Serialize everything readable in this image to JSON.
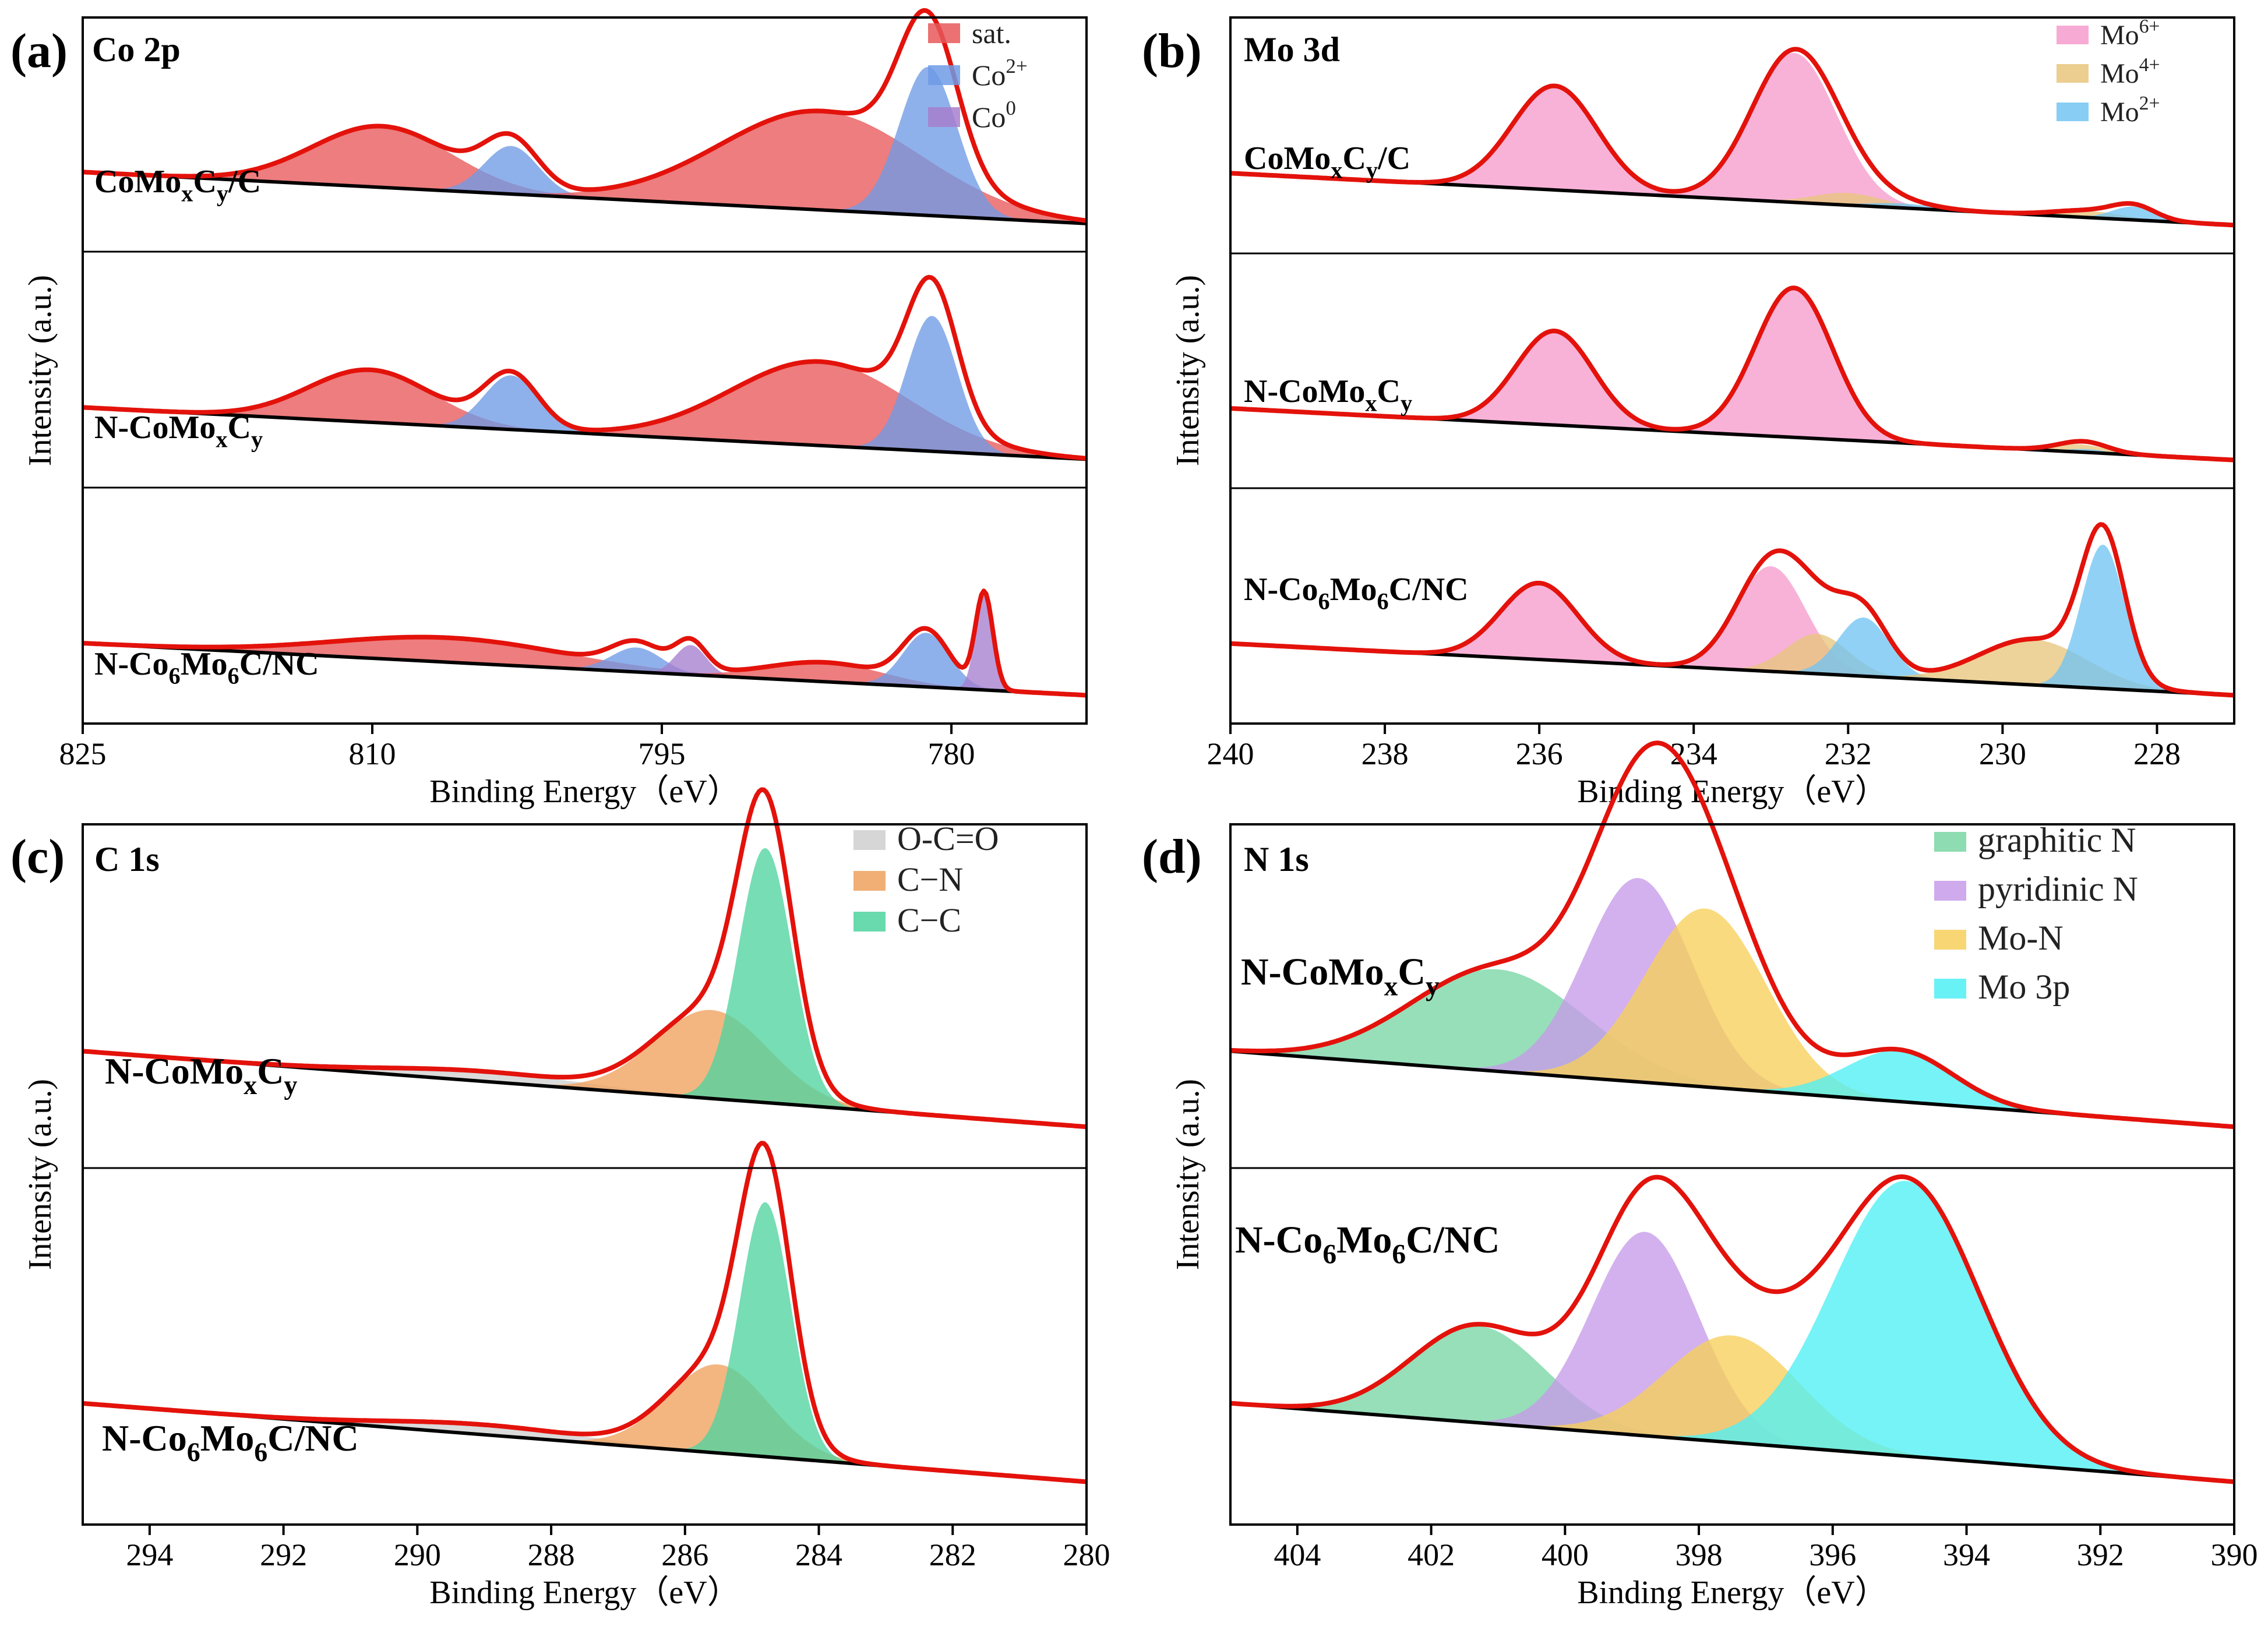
{
  "chart_data": [
    {
      "panel": "(a)",
      "type": "area",
      "title": "Co 2p",
      "xlabel": "Binding Energy（eV）",
      "ylabel": "Intensity (a.u.)",
      "xlim": [
        825,
        773
      ],
      "xticks": [
        825,
        810,
        795,
        780
      ],
      "legend": [
        {
          "label": "sat.",
          "color": "#e8585a"
        },
        {
          "label": "Co",
          "sup": "2+",
          "color": "#6f9be6"
        },
        {
          "label": "Co",
          "sup": "0",
          "color": "#a77fce"
        }
      ],
      "samples": [
        {
          "name": [
            "CoMo",
            {
              "sub": "x"
            },
            "C",
            {
              "sub": "y"
            },
            "/C"
          ],
          "baseline": [
            0.62,
            0.05
          ],
          "peaks": [
            {
              "center": 809.5,
              "height": 0.7,
              "width": 3.6,
              "component": "sat."
            },
            {
              "center": 802.8,
              "height": 0.55,
              "width": 1.4,
              "component": "Co2+"
            },
            {
              "center": 786.8,
              "height": 1.13,
              "width": 5.2,
              "component": "sat."
            },
            {
              "center": 781.2,
              "height": 1.7,
              "width": 1.5,
              "component": "Co2+"
            }
          ]
        },
        {
          "name": [
            "N-CoMo",
            {
              "sub": "x"
            },
            "C",
            {
              "sub": "y"
            }
          ],
          "baseline": [
            0.62,
            0.05
          ],
          "peaks": [
            {
              "center": 810.1,
              "height": 0.6,
              "width": 3.2,
              "component": "sat."
            },
            {
              "center": 802.8,
              "height": 0.62,
              "width": 1.4,
              "component": "Co2+"
            },
            {
              "center": 786.8,
              "height": 0.96,
              "width": 4.6,
              "component": "sat."
            },
            {
              "center": 781.0,
              "height": 1.55,
              "width": 1.3,
              "component": "Co2+"
            }
          ]
        },
        {
          "name": [
            "N-Co",
            {
              "sub": "6"
            },
            "Mo",
            {
              "sub": "6"
            },
            "C/NC"
          ],
          "baseline": [
            0.62,
            0.05
          ],
          "peaks": [
            {
              "center": 806.0,
              "height": 0.28,
              "width": 6.0,
              "component": "sat."
            },
            {
              "center": 796.3,
              "height": 0.28,
              "width": 1.3,
              "component": "Co2+"
            },
            {
              "center": 793.5,
              "height": 0.34,
              "width": 0.8,
              "component": "Co0"
            },
            {
              "center": 786.5,
              "height": 0.22,
              "width": 3.0,
              "component": "sat."
            },
            {
              "center": 781.3,
              "height": 0.62,
              "width": 1.2,
              "component": "Co2+"
            },
            {
              "center": 778.3,
              "height": 1.1,
              "width": 0.45,
              "component": "Co0"
            }
          ]
        }
      ]
    },
    {
      "panel": "(b)",
      "type": "area",
      "title": "Mo 3d",
      "xlabel": "Binding Energy（eV）",
      "ylabel": "Intensity (a.u.)",
      "xlim": [
        240,
        227
      ],
      "xticks": [
        240,
        238,
        236,
        234,
        232,
        230,
        228
      ],
      "legend": [
        {
          "label": "Mo",
          "sup": "6+",
          "color": "#f69ccd"
        },
        {
          "label": "Mo",
          "sup": "4+",
          "color": "#e8c57c"
        },
        {
          "label": "Mo",
          "sup": "2+",
          "color": "#72c4f2"
        }
      ],
      "samples": [
        {
          "name": [
            "CoMo",
            {
              "sub": "x"
            },
            "C",
            {
              "sub": "y"
            },
            "/C"
          ],
          "baseline": [
            0.62,
            0.05
          ],
          "peaks": [
            {
              "center": 235.8,
              "height": 1.88,
              "width": 0.55,
              "component": "Mo6+"
            },
            {
              "center": 232.7,
              "height": 2.7,
              "width": 0.55,
              "component": "Mo6+"
            },
            {
              "center": 232.0,
              "height": 0.22,
              "width": 0.45,
              "component": "Mo4+"
            },
            {
              "center": 231.3,
              "height": 0.08,
              "width": 0.45,
              "component": "Mo2+"
            },
            {
              "center": 228.9,
              "height": 0.12,
              "width": 0.45,
              "component": "Mo4+"
            },
            {
              "center": 228.3,
              "height": 0.24,
              "width": 0.28,
              "component": "Mo2+"
            }
          ]
        },
        {
          "name": [
            "N-CoMo",
            {
              "sub": "x"
            },
            "C",
            {
              "sub": "y"
            }
          ],
          "baseline": [
            0.62,
            0.05
          ],
          "peaks": [
            {
              "center": 235.8,
              "height": 1.7,
              "width": 0.5,
              "component": "Mo6+"
            },
            {
              "center": 232.7,
              "height": 2.7,
              "width": 0.5,
              "component": "Mo6+"
            },
            {
              "center": 229.0,
              "height": 0.14,
              "width": 0.35,
              "component": "Mo4+"
            },
            {
              "center": 228.9,
              "height": 0.06,
              "width": 0.25,
              "component": "Mo2+"
            }
          ]
        },
        {
          "name": [
            "N-Co",
            {
              "sub": "6"
            },
            "Mo",
            {
              "sub": "6"
            },
            "C/NC"
          ],
          "baseline": [
            0.62,
            0.05
          ],
          "peaks": [
            {
              "center": 236.0,
              "height": 1.38,
              "width": 0.5,
              "component": "Mo6+"
            },
            {
              "center": 233.0,
              "height": 1.9,
              "width": 0.45,
              "component": "Mo6+"
            },
            {
              "center": 232.4,
              "height": 0.72,
              "width": 0.4,
              "component": "Mo4+"
            },
            {
              "center": 231.8,
              "height": 1.06,
              "width": 0.33,
              "component": "Mo2+"
            },
            {
              "center": 229.6,
              "height": 0.82,
              "width": 0.7,
              "component": "Mo4+"
            },
            {
              "center": 228.7,
              "height": 2.6,
              "width": 0.28,
              "component": "Mo2+"
            }
          ]
        }
      ]
    },
    {
      "panel": "(c)",
      "type": "area",
      "title": "C 1s",
      "xlabel": "Binding Energy（eV）",
      "ylabel": "Intensity (a.u.)",
      "xlim": [
        295,
        280
      ],
      "xticks": [
        294,
        292,
        290,
        288,
        286,
        284,
        282,
        280
      ],
      "legend": [
        {
          "label": "O-C=O",
          "color": "#cfcfcf"
        },
        {
          "label": "C−N",
          "color": "#f0a15d"
        },
        {
          "label": "C−C",
          "color": "#4fd3a0"
        }
      ],
      "samples": [
        {
          "name": [
            "N-CoMo",
            {
              "sub": "x"
            },
            "C",
            {
              "sub": "y"
            }
          ],
          "baseline": [
            0.62,
            0.05
          ],
          "peaks": [
            {
              "center": 289.0,
              "height": 0.18,
              "width": 1.5,
              "component": "O-C=O"
            },
            {
              "center": 285.6,
              "height": 1.6,
              "width": 0.85,
              "component": "C−N"
            },
            {
              "center": 284.8,
              "height": 4.6,
              "width": 0.4,
              "component": "C−C"
            }
          ]
        },
        {
          "name": [
            "N-Co",
            {
              "sub": "6"
            },
            "Mo",
            {
              "sub": "6"
            },
            "C/NC"
          ],
          "baseline": [
            0.62,
            0.05
          ],
          "peaks": [
            {
              "center": 289.0,
              "height": 0.18,
              "width": 1.5,
              "component": "O-C=O"
            },
            {
              "center": 285.5,
              "height": 1.6,
              "width": 0.75,
              "component": "C−N"
            },
            {
              "center": 284.8,
              "height": 4.6,
              "width": 0.38,
              "component": "C−C"
            }
          ]
        }
      ]
    },
    {
      "panel": "(d)",
      "type": "area",
      "title": "N 1s",
      "xlabel": "Binding Energy（eV）",
      "ylabel": "Intensity (a.u.)",
      "xlim": [
        405,
        390
      ],
      "xticks": [
        404,
        402,
        400,
        398,
        396,
        394,
        392,
        390
      ],
      "legend": [
        {
          "label": "graphitic N",
          "color": "#79d6a5"
        },
        {
          "label": "pyridinic N",
          "color": "#c79be9"
        },
        {
          "label": "Mo-N",
          "color": "#f7cf5a"
        },
        {
          "label": "Mo 3p",
          "color": "#4ff0f5"
        }
      ],
      "samples": [
        {
          "name": [
            "N-CoMo",
            {
              "sub": "x"
            },
            "C",
            {
              "sub": "y"
            }
          ],
          "baseline": [
            0.62,
            0.05
          ],
          "peaks": [
            {
              "center": 401.0,
              "height": 1.0,
              "width": 1.3,
              "component": "graphitic N"
            },
            {
              "center": 398.9,
              "height": 2.0,
              "width": 0.8,
              "component": "pyridinic N"
            },
            {
              "center": 397.9,
              "height": 1.75,
              "width": 0.9,
              "component": "Mo-N"
            },
            {
              "center": 395.0,
              "height": 0.5,
              "width": 0.8,
              "component": "Mo 3p"
            }
          ]
        },
        {
          "name": [
            "N-Co",
            {
              "sub": "6"
            },
            "Mo",
            {
              "sub": "6"
            },
            "C/NC"
          ],
          "baseline": [
            0.62,
            0.05
          ],
          "peaks": [
            {
              "center": 401.3,
              "height": 0.95,
              "width": 1.0,
              "component": "graphitic N"
            },
            {
              "center": 398.8,
              "height": 2.0,
              "width": 0.8,
              "component": "pyridinic N"
            },
            {
              "center": 397.5,
              "height": 1.05,
              "width": 1.0,
              "component": "Mo-N"
            },
            {
              "center": 394.9,
              "height": 2.7,
              "width": 1.1,
              "component": "Mo 3p"
            }
          ]
        }
      ]
    }
  ]
}
